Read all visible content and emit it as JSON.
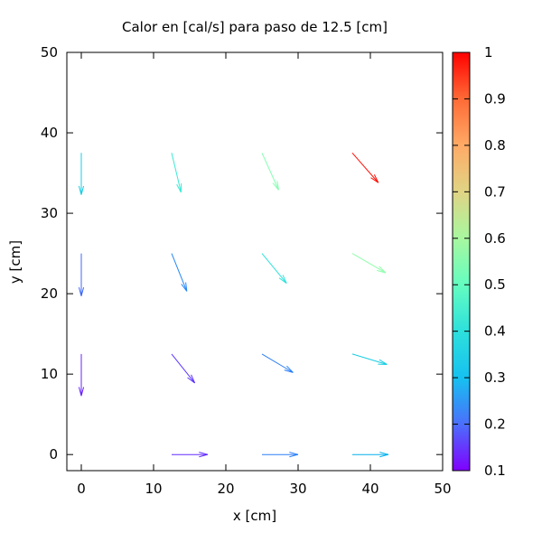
{
  "chart_data": {
    "type": "vector-field",
    "title": "Calor en [cal/s] para paso de 12.5 [cm]",
    "xlabel": "x [cm]",
    "ylabel": "y [cm]",
    "xlim": [
      -2,
      50
    ],
    "ylim": [
      -2,
      50
    ],
    "xticks": [
      0,
      10,
      20,
      30,
      40,
      50
    ],
    "yticks": [
      0,
      10,
      20,
      30,
      40,
      50
    ],
    "grid": false,
    "colorbar": {
      "range": [
        0.1,
        1.0
      ],
      "ticks": [
        0.1,
        0.2,
        0.3,
        0.4,
        0.5,
        0.6,
        0.7,
        0.8,
        0.9,
        1.0
      ],
      "tick_labels": [
        "0.1",
        "0.2",
        "0.3",
        "0.4",
        "0.5",
        "0.6",
        "0.7",
        "0.8",
        "0.9",
        "1"
      ],
      "palette": "rainbow"
    },
    "vectors": [
      {
        "x": 0,
        "y": 0,
        "dx": 0,
        "dy": 0,
        "value": 0.0
      },
      {
        "x": 12.5,
        "y": 0,
        "dx": 5.0,
        "dy": 0,
        "value": 0.15
      },
      {
        "x": 25,
        "y": 0,
        "dx": 5.0,
        "dy": 0,
        "value": 0.25
      },
      {
        "x": 37.5,
        "y": 0,
        "dx": 5.0,
        "dy": 0,
        "value": 0.32
      },
      {
        "x": 0,
        "y": 12.5,
        "dx": 0,
        "dy": -5.2,
        "value": 0.14
      },
      {
        "x": 12.5,
        "y": 12.5,
        "dx": 3.2,
        "dy": -3.6,
        "value": 0.16
      },
      {
        "x": 25,
        "y": 12.5,
        "dx": 4.3,
        "dy": -2.3,
        "value": 0.25
      },
      {
        "x": 37.5,
        "y": 12.5,
        "dx": 4.8,
        "dy": -1.3,
        "value": 0.37
      },
      {
        "x": 0,
        "y": 25,
        "dx": 0,
        "dy": -5.3,
        "value": 0.22
      },
      {
        "x": 12.5,
        "y": 25,
        "dx": 2.1,
        "dy": -4.7,
        "value": 0.26
      },
      {
        "x": 25,
        "y": 25,
        "dx": 3.4,
        "dy": -3.7,
        "value": 0.41
      },
      {
        "x": 37.5,
        "y": 25,
        "dx": 4.6,
        "dy": -2.4,
        "value": 0.58
      },
      {
        "x": 0,
        "y": 37.5,
        "dx": 0,
        "dy": -5.2,
        "value": 0.37
      },
      {
        "x": 12.5,
        "y": 37.5,
        "dx": 1.3,
        "dy": -4.9,
        "value": 0.43
      },
      {
        "x": 25,
        "y": 37.5,
        "dx": 2.3,
        "dy": -4.6,
        "value": 0.56
      },
      {
        "x": 37.5,
        "y": 37.5,
        "dx": 3.6,
        "dy": -3.7,
        "value": 0.98
      }
    ]
  }
}
